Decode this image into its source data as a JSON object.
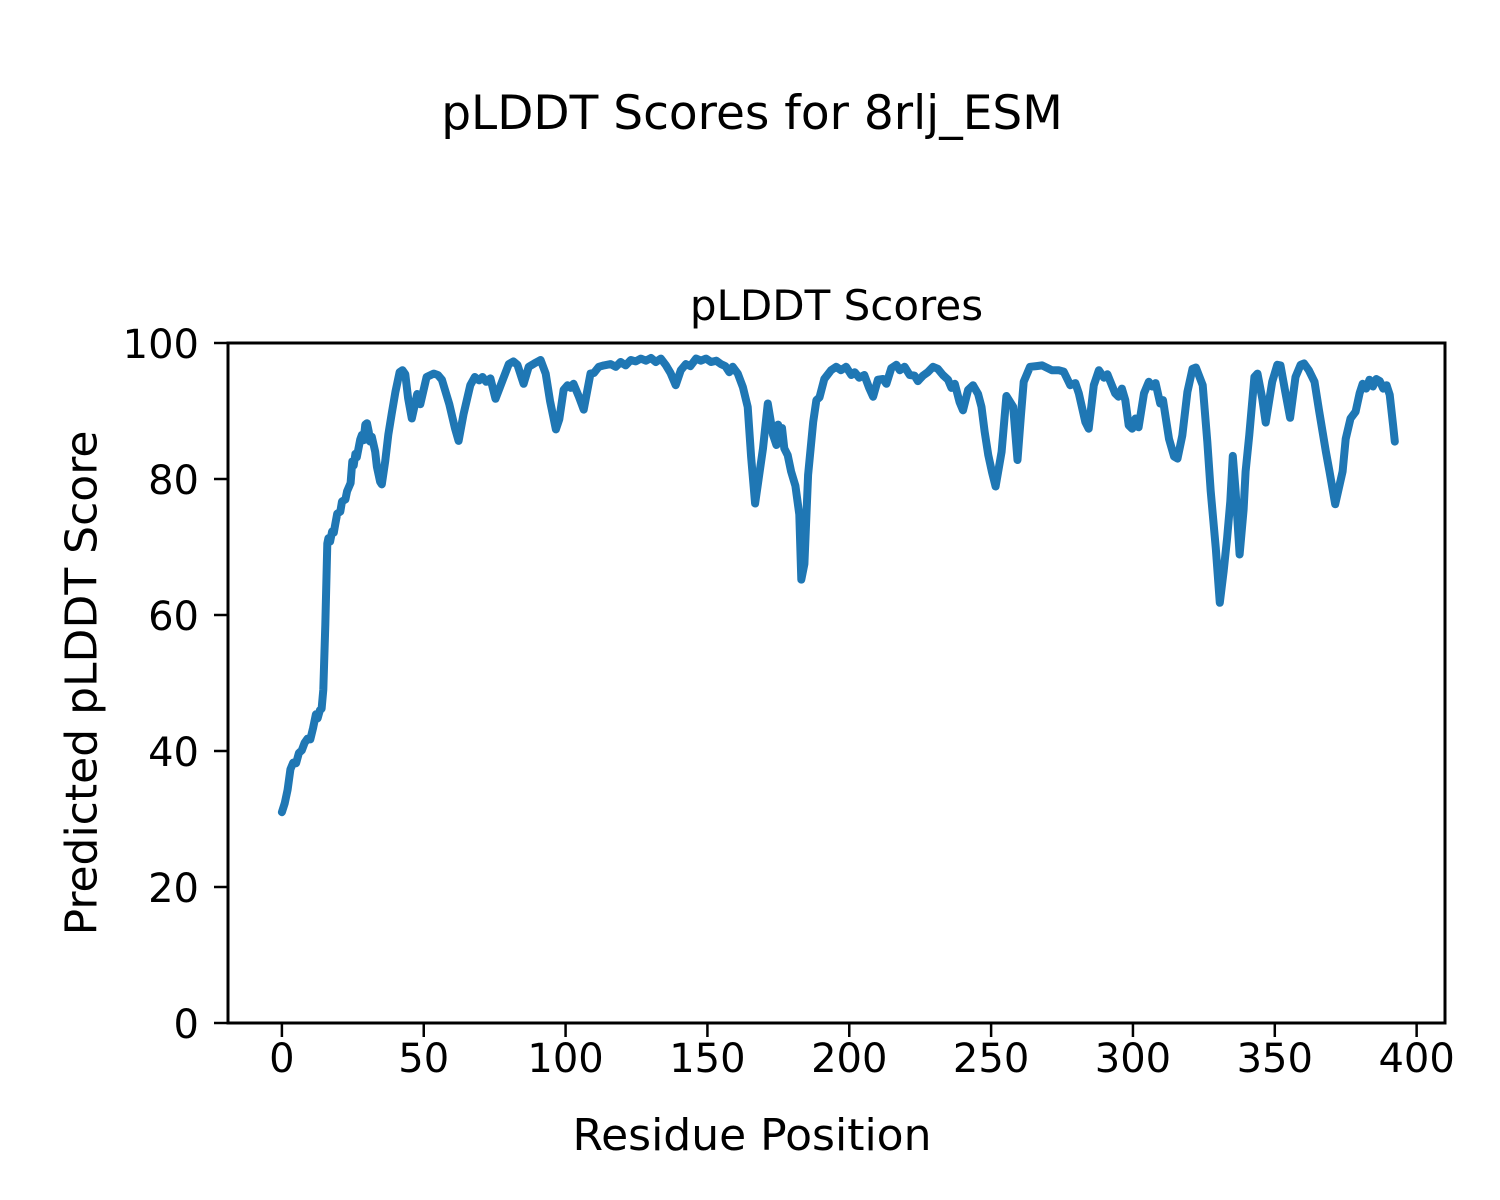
{
  "figure": {
    "suptitle": "pLDDT Scores for 8rlj_ESM"
  },
  "chart_data": {
    "type": "line",
    "title": "pLDDT Scores",
    "xlabel": "Residue Position",
    "ylabel": "Predicted pLDDT Score",
    "xlim": [
      -19,
      410
    ],
    "ylim": [
      0,
      100
    ],
    "x_ticks": [
      0,
      50,
      100,
      150,
      200,
      250,
      300,
      350,
      400
    ],
    "y_ticks": [
      0,
      20,
      40,
      60,
      80,
      100
    ],
    "grid": false,
    "legend": false,
    "series": [
      {
        "name": "pLDDT",
        "color": "#1f77b4",
        "line_width": 8,
        "points": [
          [
            0,
            31.0
          ],
          [
            1,
            32.3
          ],
          [
            2,
            34.3
          ],
          [
            3,
            37.3
          ],
          [
            4,
            38.3
          ],
          [
            5,
            38.2
          ],
          [
            6,
            39.7
          ],
          [
            7,
            40.1
          ],
          [
            8,
            41.2
          ],
          [
            9,
            41.8
          ],
          [
            10,
            41.7
          ],
          [
            11,
            43.4
          ],
          [
            12,
            45.4
          ],
          [
            12.6,
            44.8
          ],
          [
            13.4,
            46.0
          ],
          [
            14,
            46.2
          ],
          [
            14.6,
            49.0
          ],
          [
            15.3,
            58.5
          ],
          [
            16,
            70.5
          ],
          [
            16.4,
            71.3
          ],
          [
            17,
            70.8
          ],
          [
            17.7,
            72.3
          ],
          [
            18.3,
            72.1
          ],
          [
            18.8,
            73.3
          ],
          [
            19.5,
            74.9
          ],
          [
            20.6,
            75.2
          ],
          [
            21.2,
            76.7
          ],
          [
            22.4,
            77.0
          ],
          [
            23,
            78.2
          ],
          [
            24.2,
            79.4
          ],
          [
            24.8,
            82.6
          ],
          [
            25.3,
            82.0
          ],
          [
            25.9,
            83.7
          ],
          [
            26.4,
            83.2
          ],
          [
            27.6,
            85.8
          ],
          [
            28.2,
            86.5
          ],
          [
            28.8,
            85.7
          ],
          [
            29.4,
            88.0
          ],
          [
            30,
            88.2
          ],
          [
            30.6,
            87.0
          ],
          [
            31.1,
            85.5
          ],
          [
            31.7,
            86.2
          ],
          [
            32.9,
            84.0
          ],
          [
            33.5,
            81.8
          ],
          [
            34.6,
            79.6
          ],
          [
            35.2,
            79.2
          ],
          [
            36.4,
            82.6
          ],
          [
            37.5,
            86.5
          ],
          [
            38.7,
            89.6
          ],
          [
            40,
            92.8
          ],
          [
            41.5,
            95.7
          ],
          [
            42.5,
            96.0
          ],
          [
            43.5,
            95.4
          ],
          [
            44.5,
            91.9
          ],
          [
            45.8,
            88.9
          ],
          [
            47.7,
            92.5
          ],
          [
            48.8,
            91.0
          ],
          [
            51,
            95.0
          ],
          [
            53.5,
            95.5
          ],
          [
            55,
            95.3
          ],
          [
            56.4,
            94.6
          ],
          [
            59,
            91.0
          ],
          [
            61,
            87.5
          ],
          [
            62.3,
            85.6
          ],
          [
            64,
            89.5
          ],
          [
            66.4,
            93.8
          ],
          [
            68,
            95.0
          ],
          [
            69.5,
            94.5
          ],
          [
            70.7,
            95.0
          ],
          [
            72,
            94.3
          ],
          [
            73.5,
            94.8
          ],
          [
            75.3,
            91.8
          ],
          [
            77.6,
            94.3
          ],
          [
            80,
            96.9
          ],
          [
            81.6,
            97.3
          ],
          [
            83,
            96.8
          ],
          [
            85.2,
            94.0
          ],
          [
            87,
            96.5
          ],
          [
            89,
            97.0
          ],
          [
            91.2,
            97.5
          ],
          [
            93,
            95.5
          ],
          [
            94.5,
            91.5
          ],
          [
            96.6,
            87.3
          ],
          [
            97.8,
            88.8
          ],
          [
            99.3,
            93.1
          ],
          [
            100.7,
            93.8
          ],
          [
            101.8,
            93.4
          ],
          [
            102.8,
            94.0
          ],
          [
            104.7,
            92.1
          ],
          [
            106.4,
            90.2
          ],
          [
            108.8,
            95.5
          ],
          [
            110,
            95.6
          ],
          [
            111.7,
            96.5
          ],
          [
            113.5,
            96.7
          ],
          [
            115.9,
            96.9
          ],
          [
            117.7,
            96.5
          ],
          [
            119.4,
            97.2
          ],
          [
            121.2,
            96.7
          ],
          [
            123,
            97.5
          ],
          [
            124.7,
            97.3
          ],
          [
            126.5,
            97.7
          ],
          [
            128.3,
            97.4
          ],
          [
            130.1,
            97.8
          ],
          [
            131.8,
            97.2
          ],
          [
            133.6,
            97.7
          ],
          [
            135.4,
            96.7
          ],
          [
            137,
            95.6
          ],
          [
            138.8,
            93.8
          ],
          [
            140.6,
            96.0
          ],
          [
            142.4,
            96.9
          ],
          [
            144,
            96.6
          ],
          [
            146,
            97.7
          ],
          [
            147.7,
            97.4
          ],
          [
            149.5,
            97.7
          ],
          [
            151.3,
            97.2
          ],
          [
            153.1,
            97.4
          ],
          [
            154.8,
            96.9
          ],
          [
            156.3,
            96.6
          ],
          [
            157.7,
            95.7
          ],
          [
            158.9,
            96.5
          ],
          [
            160.7,
            95.5
          ],
          [
            162.5,
            93.5
          ],
          [
            164.2,
            90.6
          ],
          [
            165.4,
            83.3
          ],
          [
            166.8,
            76.4
          ],
          [
            168.2,
            80.5
          ],
          [
            169.6,
            84.5
          ],
          [
            171.3,
            91.1
          ],
          [
            173.1,
            86.5
          ],
          [
            174.3,
            85.0
          ],
          [
            174.9,
            88.0
          ],
          [
            175.5,
            85.8
          ],
          [
            176.3,
            87.5
          ],
          [
            177.1,
            84.5
          ],
          [
            178.3,
            83.5
          ],
          [
            179.5,
            81.1
          ],
          [
            181,
            79.0
          ],
          [
            182.4,
            74.8
          ],
          [
            183.1,
            65.2
          ],
          [
            184.2,
            67.5
          ],
          [
            185.5,
            80.6
          ],
          [
            187.3,
            88.4
          ],
          [
            188.4,
            91.6
          ],
          [
            189.5,
            92.0
          ],
          [
            191.2,
            94.7
          ],
          [
            193.6,
            96.0
          ],
          [
            195.4,
            96.5
          ],
          [
            197.1,
            96.0
          ],
          [
            198.9,
            96.5
          ],
          [
            200.7,
            95.3
          ],
          [
            201.9,
            95.7
          ],
          [
            203.5,
            94.9
          ],
          [
            205.3,
            95.3
          ],
          [
            207,
            93.4
          ],
          [
            208.4,
            92.1
          ],
          [
            210.1,
            94.6
          ],
          [
            211.9,
            94.7
          ],
          [
            213.1,
            94.0
          ],
          [
            214.8,
            96.3
          ],
          [
            216.6,
            96.8
          ],
          [
            217.8,
            96.0
          ],
          [
            219.5,
            96.5
          ],
          [
            221.3,
            95.3
          ],
          [
            223,
            95.2
          ],
          [
            224.2,
            94.4
          ],
          [
            226,
            95.2
          ],
          [
            227.7,
            95.7
          ],
          [
            229.5,
            96.5
          ],
          [
            231.2,
            96.2
          ],
          [
            233,
            95.3
          ],
          [
            234.8,
            94.6
          ],
          [
            236,
            93.4
          ],
          [
            237.2,
            94.0
          ],
          [
            238.9,
            91.3
          ],
          [
            240.1,
            90.1
          ],
          [
            241.9,
            93.1
          ],
          [
            243.6,
            93.8
          ],
          [
            245.4,
            92.5
          ],
          [
            246.6,
            90.6
          ],
          [
            247.7,
            87.0
          ],
          [
            249,
            83.5
          ],
          [
            250.3,
            81.0
          ],
          [
            251.6,
            78.9
          ],
          [
            253.7,
            84.0
          ],
          [
            255.4,
            92.2
          ],
          [
            257.8,
            90.6
          ],
          [
            259.3,
            82.8
          ],
          [
            260.5,
            89.3
          ],
          [
            261.5,
            94.3
          ],
          [
            263.7,
            96.5
          ],
          [
            266,
            96.6
          ],
          [
            268,
            96.7
          ],
          [
            270,
            96.3
          ],
          [
            271.4,
            96.0
          ],
          [
            273.8,
            96.0
          ],
          [
            275.6,
            95.8
          ],
          [
            277.9,
            93.8
          ],
          [
            279.7,
            94.1
          ],
          [
            280.9,
            92.6
          ],
          [
            283.2,
            88.4
          ],
          [
            284.4,
            87.4
          ],
          [
            286.2,
            93.8
          ],
          [
            288,
            96.0
          ],
          [
            289.8,
            94.9
          ],
          [
            291,
            95.4
          ],
          [
            293.7,
            92.6
          ],
          [
            294.9,
            92.1
          ],
          [
            296.1,
            93.3
          ],
          [
            297.3,
            91.6
          ],
          [
            298.5,
            87.9
          ],
          [
            299.7,
            87.4
          ],
          [
            300.9,
            88.9
          ],
          [
            302,
            87.6
          ],
          [
            303.9,
            92.6
          ],
          [
            305.6,
            94.3
          ],
          [
            306.8,
            93.6
          ],
          [
            308,
            94.1
          ],
          [
            309.6,
            91.1
          ],
          [
            310.6,
            91.6
          ],
          [
            312.7,
            85.9
          ],
          [
            314.5,
            83.3
          ],
          [
            315.7,
            83.0
          ],
          [
            317.4,
            86.4
          ],
          [
            319.2,
            92.8
          ],
          [
            321,
            96.2
          ],
          [
            322.2,
            96.4
          ],
          [
            324.6,
            93.8
          ],
          [
            326.2,
            85.5
          ],
          [
            327.4,
            78.2
          ],
          [
            329.2,
            69.8
          ],
          [
            330.6,
            61.8
          ],
          [
            332,
            66.5
          ],
          [
            333.2,
            71.3
          ],
          [
            334.3,
            76.7
          ],
          [
            335.2,
            83.4
          ],
          [
            336.2,
            78.2
          ],
          [
            337.6,
            68.9
          ],
          [
            339,
            75.5
          ],
          [
            339.7,
            81.1
          ],
          [
            341,
            86.5
          ],
          [
            342.8,
            95.0
          ],
          [
            343.9,
            95.5
          ],
          [
            345.6,
            91.8
          ],
          [
            346.8,
            88.3
          ],
          [
            349.1,
            94.3
          ],
          [
            350.9,
            96.8
          ],
          [
            352,
            96.7
          ],
          [
            353.7,
            92.8
          ],
          [
            355.4,
            89.0
          ],
          [
            357.3,
            95.0
          ],
          [
            359.1,
            96.8
          ],
          [
            360.3,
            97.0
          ],
          [
            362,
            96.0
          ],
          [
            364,
            94.3
          ],
          [
            365.6,
            90.1
          ],
          [
            368,
            84.0
          ],
          [
            369.3,
            81.1
          ],
          [
            371.3,
            76.3
          ],
          [
            373.9,
            81.1
          ],
          [
            375,
            85.9
          ],
          [
            376.7,
            88.9
          ],
          [
            378.5,
            89.9
          ],
          [
            379.9,
            92.6
          ],
          [
            381,
            94.0
          ],
          [
            382.2,
            93.3
          ],
          [
            383.4,
            94.6
          ],
          [
            384.6,
            93.6
          ],
          [
            385.8,
            94.7
          ],
          [
            387,
            94.4
          ],
          [
            388.2,
            93.3
          ],
          [
            389.4,
            93.8
          ],
          [
            390.5,
            92.4
          ],
          [
            391.7,
            87.9
          ],
          [
            392.3,
            85.5
          ]
        ]
      }
    ]
  }
}
